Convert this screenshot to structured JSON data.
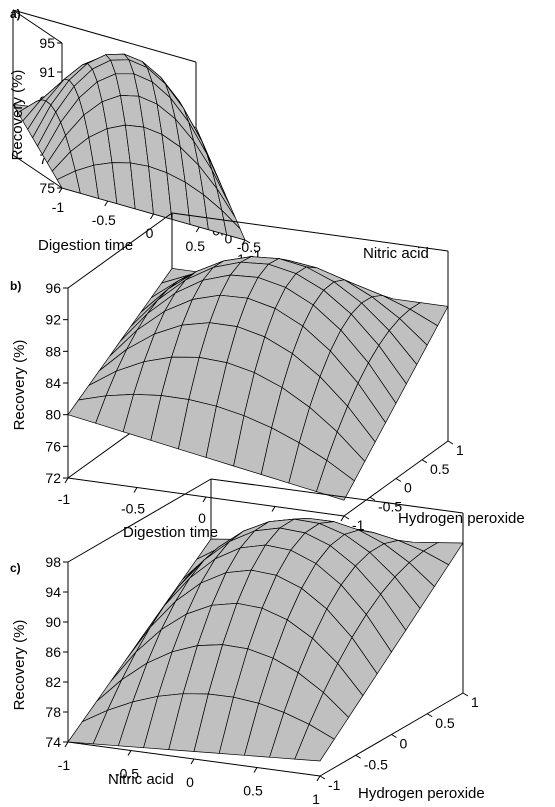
{
  "chart_data": [
    {
      "panel": "a)",
      "type": "surface",
      "zlabel": "Recovery (%)",
      "xlabel": "Digestion time",
      "ylabel": "Nitric acid",
      "zticks": [
        75,
        79,
        83,
        87,
        91,
        95
      ],
      "xticks": [
        "-1",
        "-0.5",
        "0",
        "0.5",
        "1"
      ],
      "yticks": [
        "-1",
        "-0.5",
        "0",
        "0.5",
        "1"
      ],
      "zlim": [
        75,
        95
      ],
      "surface_corners": {
        "x-1_y-1": 75,
        "x1_y-1": 75,
        "x-1_y1": 82,
        "x1_y1": 86
      },
      "surface_max": 94
    },
    {
      "panel": "b)",
      "type": "surface",
      "zlabel": "Recovery (%)",
      "xlabel": "Digestion time",
      "ylabel": "Hydrogen peroxide",
      "zticks": [
        72,
        76,
        80,
        84,
        88,
        92,
        96
      ],
      "xticks": [
        "-1",
        "-0.5",
        "0",
        "0.5",
        "1"
      ],
      "yticks": [
        "-1",
        "-0.5",
        "0",
        "0.5",
        "1"
      ],
      "zlim": [
        72,
        96
      ],
      "surface_corners": {
        "x-1_y-1": 80,
        "x1_y-1": 74,
        "x-1_y1": 89,
        "x1_y1": 89
      },
      "surface_max": 95
    },
    {
      "panel": "c)",
      "type": "surface",
      "zlabel": "Recovery (%)",
      "xlabel": "Nitric acid",
      "ylabel": "Hydrogen peroxide",
      "zticks": [
        74,
        78,
        82,
        86,
        90,
        94,
        98
      ],
      "xticks": [
        "-1",
        "-0.5",
        "0",
        "0.5",
        "1"
      ],
      "yticks": [
        "-1",
        "-0.5",
        "0",
        "0.5",
        "1"
      ],
      "zlim": [
        74,
        98
      ],
      "surface_corners": {
        "x-1_y-1": 74,
        "x1_y-1": 76,
        "x-1_y1": 90,
        "x1_y1": 94
      },
      "surface_max": 97
    }
  ]
}
